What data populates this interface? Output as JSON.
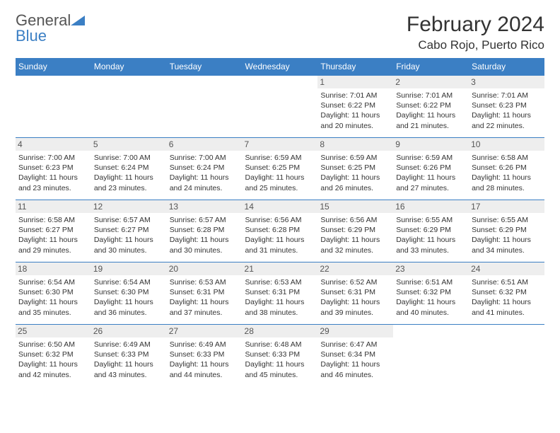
{
  "logo": {
    "text_general": "General",
    "text_blue": "Blue"
  },
  "title": "February 2024",
  "location": "Cabo Rojo, Puerto Rico",
  "header_bg": "#3b7fc4",
  "daynum_bg": "#eeeeee",
  "row_border": "#3b7fc4",
  "day_names": [
    "Sunday",
    "Monday",
    "Tuesday",
    "Wednesday",
    "Thursday",
    "Friday",
    "Saturday"
  ],
  "weeks": [
    [
      null,
      null,
      null,
      null,
      {
        "n": "1",
        "sr": "7:01 AM",
        "ss": "6:22 PM",
        "dl": "11 hours and 20 minutes."
      },
      {
        "n": "2",
        "sr": "7:01 AM",
        "ss": "6:22 PM",
        "dl": "11 hours and 21 minutes."
      },
      {
        "n": "3",
        "sr": "7:01 AM",
        "ss": "6:23 PM",
        "dl": "11 hours and 22 minutes."
      }
    ],
    [
      {
        "n": "4",
        "sr": "7:00 AM",
        "ss": "6:23 PM",
        "dl": "11 hours and 23 minutes."
      },
      {
        "n": "5",
        "sr": "7:00 AM",
        "ss": "6:24 PM",
        "dl": "11 hours and 23 minutes."
      },
      {
        "n": "6",
        "sr": "7:00 AM",
        "ss": "6:24 PM",
        "dl": "11 hours and 24 minutes."
      },
      {
        "n": "7",
        "sr": "6:59 AM",
        "ss": "6:25 PM",
        "dl": "11 hours and 25 minutes."
      },
      {
        "n": "8",
        "sr": "6:59 AM",
        "ss": "6:25 PM",
        "dl": "11 hours and 26 minutes."
      },
      {
        "n": "9",
        "sr": "6:59 AM",
        "ss": "6:26 PM",
        "dl": "11 hours and 27 minutes."
      },
      {
        "n": "10",
        "sr": "6:58 AM",
        "ss": "6:26 PM",
        "dl": "11 hours and 28 minutes."
      }
    ],
    [
      {
        "n": "11",
        "sr": "6:58 AM",
        "ss": "6:27 PM",
        "dl": "11 hours and 29 minutes."
      },
      {
        "n": "12",
        "sr": "6:57 AM",
        "ss": "6:27 PM",
        "dl": "11 hours and 30 minutes."
      },
      {
        "n": "13",
        "sr": "6:57 AM",
        "ss": "6:28 PM",
        "dl": "11 hours and 30 minutes."
      },
      {
        "n": "14",
        "sr": "6:56 AM",
        "ss": "6:28 PM",
        "dl": "11 hours and 31 minutes."
      },
      {
        "n": "15",
        "sr": "6:56 AM",
        "ss": "6:29 PM",
        "dl": "11 hours and 32 minutes."
      },
      {
        "n": "16",
        "sr": "6:55 AM",
        "ss": "6:29 PM",
        "dl": "11 hours and 33 minutes."
      },
      {
        "n": "17",
        "sr": "6:55 AM",
        "ss": "6:29 PM",
        "dl": "11 hours and 34 minutes."
      }
    ],
    [
      {
        "n": "18",
        "sr": "6:54 AM",
        "ss": "6:30 PM",
        "dl": "11 hours and 35 minutes."
      },
      {
        "n": "19",
        "sr": "6:54 AM",
        "ss": "6:30 PM",
        "dl": "11 hours and 36 minutes."
      },
      {
        "n": "20",
        "sr": "6:53 AM",
        "ss": "6:31 PM",
        "dl": "11 hours and 37 minutes."
      },
      {
        "n": "21",
        "sr": "6:53 AM",
        "ss": "6:31 PM",
        "dl": "11 hours and 38 minutes."
      },
      {
        "n": "22",
        "sr": "6:52 AM",
        "ss": "6:31 PM",
        "dl": "11 hours and 39 minutes."
      },
      {
        "n": "23",
        "sr": "6:51 AM",
        "ss": "6:32 PM",
        "dl": "11 hours and 40 minutes."
      },
      {
        "n": "24",
        "sr": "6:51 AM",
        "ss": "6:32 PM",
        "dl": "11 hours and 41 minutes."
      }
    ],
    [
      {
        "n": "25",
        "sr": "6:50 AM",
        "ss": "6:32 PM",
        "dl": "11 hours and 42 minutes."
      },
      {
        "n": "26",
        "sr": "6:49 AM",
        "ss": "6:33 PM",
        "dl": "11 hours and 43 minutes."
      },
      {
        "n": "27",
        "sr": "6:49 AM",
        "ss": "6:33 PM",
        "dl": "11 hours and 44 minutes."
      },
      {
        "n": "28",
        "sr": "6:48 AM",
        "ss": "6:33 PM",
        "dl": "11 hours and 45 minutes."
      },
      {
        "n": "29",
        "sr": "6:47 AM",
        "ss": "6:34 PM",
        "dl": "11 hours and 46 minutes."
      },
      null,
      null
    ]
  ],
  "labels": {
    "sunrise": "Sunrise: ",
    "sunset": "Sunset: ",
    "daylight": "Daylight: "
  }
}
